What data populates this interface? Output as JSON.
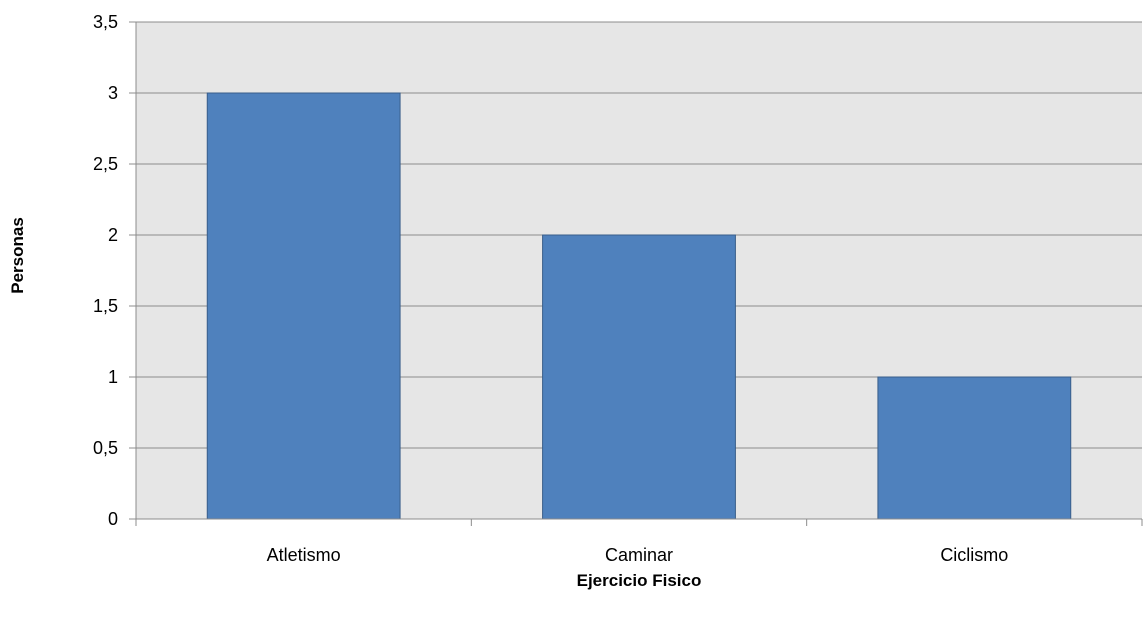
{
  "chart_data": {
    "type": "bar",
    "title": "",
    "xlabel": "Ejercicio Fisico",
    "ylabel": "Personas",
    "categories": [
      "Atletismo",
      "Caminar",
      "Ciclismo"
    ],
    "values": [
      3,
      2,
      1
    ],
    "ylim": [
      0,
      3.5
    ],
    "yticks": [
      "0",
      "0,5",
      "1",
      "1,5",
      "2",
      "2,5",
      "3",
      "3,5"
    ],
    "ytick_values": [
      0,
      0.5,
      1,
      1.5,
      2,
      2.5,
      3,
      3.5
    ],
    "grid": true,
    "legend": "none",
    "colors": {
      "bar_fill": "#4f81bd",
      "bar_stroke": "#385d8a",
      "plot_background": "#e6e6e6",
      "gridline": "#8c8c8c",
      "axis": "#8c8c8c"
    }
  }
}
